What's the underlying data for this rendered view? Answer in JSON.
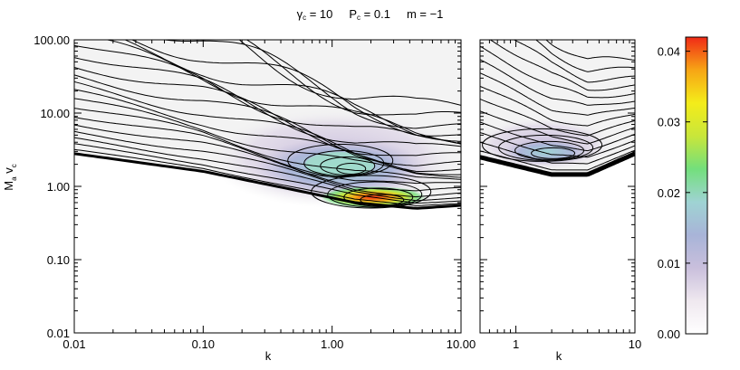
{
  "title": {
    "gamma_symbol": "γ",
    "gamma_sub": "c",
    "gamma_value": " = 10",
    "p_symbol": "P",
    "p_sub": "c",
    "p_value": " = 0.1",
    "m_label": "m = −1"
  },
  "chart_data": [
    {
      "type": "heatmap",
      "panel": "left",
      "xlabel": "k",
      "ylabel_main": "M",
      "ylabel_sub1": "a",
      "ylabel_mid": " v",
      "ylabel_sub2": "c",
      "xscale": "log",
      "yscale": "log",
      "xlim": [
        0.01,
        10
      ],
      "ylim": [
        0.01,
        100
      ],
      "x_ticks": [
        0.01,
        0.1,
        1,
        10
      ],
      "x_tick_labels": [
        "0.01",
        "0.10",
        "1.00",
        "10.00"
      ],
      "y_ticks": [
        0.01,
        0.1,
        1,
        10,
        100
      ],
      "y_tick_labels": [
        "0.01",
        "0.10",
        "1.00",
        "10.00",
        "100.00"
      ],
      "lower_boundary": [
        [
          0.01,
          2.8
        ],
        [
          0.1,
          1.6
        ],
        [
          0.5,
          0.9
        ],
        [
          1.5,
          0.6
        ],
        [
          4.5,
          0.5
        ],
        [
          10,
          0.55
        ]
      ],
      "peak": {
        "k": 2.6,
        "value": 0.6,
        "level": 0.041
      },
      "secondary_peak": {
        "k": 1.5,
        "value": 1.6,
        "level": 0.028
      },
      "contour_lines": "on"
    },
    {
      "type": "heatmap",
      "panel": "right",
      "xlabel": "k",
      "xscale": "log",
      "yscale": "log",
      "xlim": [
        0.5,
        10
      ],
      "ylim": [
        0.01,
        100
      ],
      "x_ticks": [
        1,
        10
      ],
      "x_tick_labels": [
        "1",
        "10"
      ],
      "lower_boundary": [
        [
          0.5,
          2.5
        ],
        [
          1,
          1.9
        ],
        [
          2,
          1.45
        ],
        [
          4,
          1.45
        ],
        [
          10,
          2.8
        ]
      ],
      "peak": {
        "k": 2.2,
        "value": 2.6,
        "level": 0.02
      },
      "contour_lines": "on"
    },
    {
      "type": "colorbar",
      "range": [
        0,
        0.042
      ],
      "ticks": [
        0,
        0.01,
        0.02,
        0.03,
        0.04
      ],
      "tick_labels": [
        "0.00",
        "0.01",
        "0.02",
        "0.03",
        "0.04"
      ],
      "colors": [
        "#ffffff",
        "#efe8ef",
        "#c9bfdc",
        "#a8b4d8",
        "#9fd3d3",
        "#73df7c",
        "#c9e63a",
        "#f4ec1a",
        "#f7a515",
        "#f02a17"
      ]
    }
  ]
}
